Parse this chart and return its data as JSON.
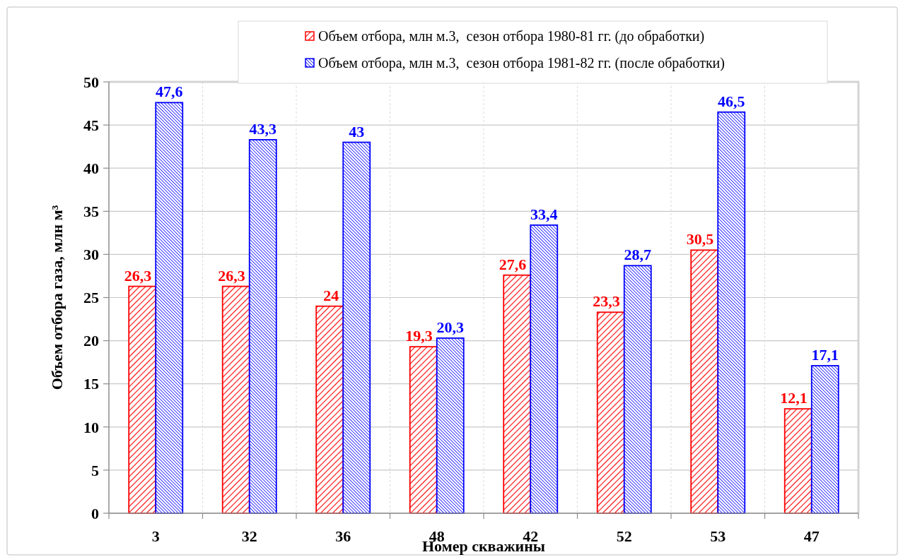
{
  "chart_data": {
    "type": "bar",
    "xlabel": "Номер скважины",
    "ylabel": "Объем отбора газа, млн м³",
    "categories": [
      "3",
      "32",
      "36",
      "48",
      "42",
      "52",
      "53",
      "47"
    ],
    "series": [
      {
        "name": "Объем отбора, млн м.3,  сезон отбора 1980-81 гг. (до обработки)",
        "color": "#ff0000",
        "values": [
          26.3,
          26.3,
          24,
          19.3,
          27.6,
          23.3,
          30.5,
          12.1
        ],
        "value_labels": [
          "26,3",
          "26,3",
          "24",
          "19,3",
          "27,6",
          "23,3",
          "30,5",
          "12,1"
        ]
      },
      {
        "name": "Объем отбора, млн м.3,  сезон отбора 1981-82 гг. (после обработки)",
        "color": "#0000ff",
        "values": [
          47.6,
          43.3,
          43,
          20.3,
          33.4,
          28.7,
          46.5,
          17.1
        ],
        "value_labels": [
          "47,6",
          "43,3",
          "43",
          "20,3",
          "33,4",
          "28,7",
          "46,5",
          "17,1"
        ]
      }
    ],
    "ylim": [
      0,
      50
    ],
    "yticks": [
      0,
      5,
      10,
      15,
      20,
      25,
      30,
      35,
      40,
      45,
      50
    ],
    "grid": true,
    "legend": "top"
  }
}
